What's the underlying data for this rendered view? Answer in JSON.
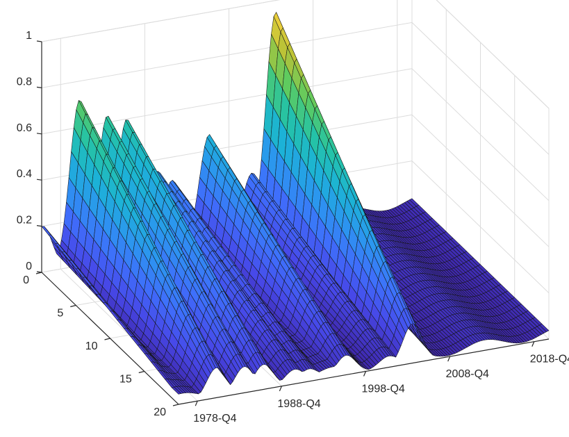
{
  "chart_data": {
    "type": "surface",
    "title": "",
    "xlabel": "",
    "ylabel": "",
    "zlabel": "",
    "x_ticks": [
      "1978-Q4",
      "1988-Q4",
      "1998-Q4",
      "2008-Q4",
      "2018-Q4"
    ],
    "x_tick_values": [
      1978.75,
      1988.75,
      1998.75,
      2008.75,
      2018.75
    ],
    "xlim": [
      1976.5,
      2020.5
    ],
    "y_ticks": [
      "0",
      "5",
      "10",
      "15",
      "20"
    ],
    "y_tick_values": [
      0,
      5,
      10,
      15,
      20
    ],
    "ylim": [
      0,
      20
    ],
    "z_ticks": [
      "0",
      "0.2",
      "0.4",
      "0.6",
      "0.8",
      "1"
    ],
    "z_tick_values": [
      0,
      0.2,
      0.4,
      0.6,
      0.8,
      1
    ],
    "zlim": [
      0,
      1
    ],
    "grid": true,
    "colormap": "parula",
    "colormap_stops": [
      "#3e26a8",
      "#4748e8",
      "#3f6efb",
      "#2c95f0",
      "#1cb3d6",
      "#25c3a5",
      "#5ccb61",
      "#b8c237",
      "#f7d13a"
    ],
    "ridges": [
      {
        "x": 1976.6,
        "z": 0.2
      },
      {
        "x": 1981.0,
        "z": 0.72
      },
      {
        "x": 1984.3,
        "z": 0.63
      },
      {
        "x": 1986.6,
        "z": 0.6
      },
      {
        "x": 1990.3,
        "z": 0.35
      },
      {
        "x": 1992.0,
        "z": 0.3
      },
      {
        "x": 1996.4,
        "z": 0.47
      },
      {
        "x": 2001.5,
        "z": 0.27
      },
      {
        "x": 2004.3,
        "z": 0.95
      }
    ],
    "decay_along_y": "peak height decreases toward y = 20"
  }
}
